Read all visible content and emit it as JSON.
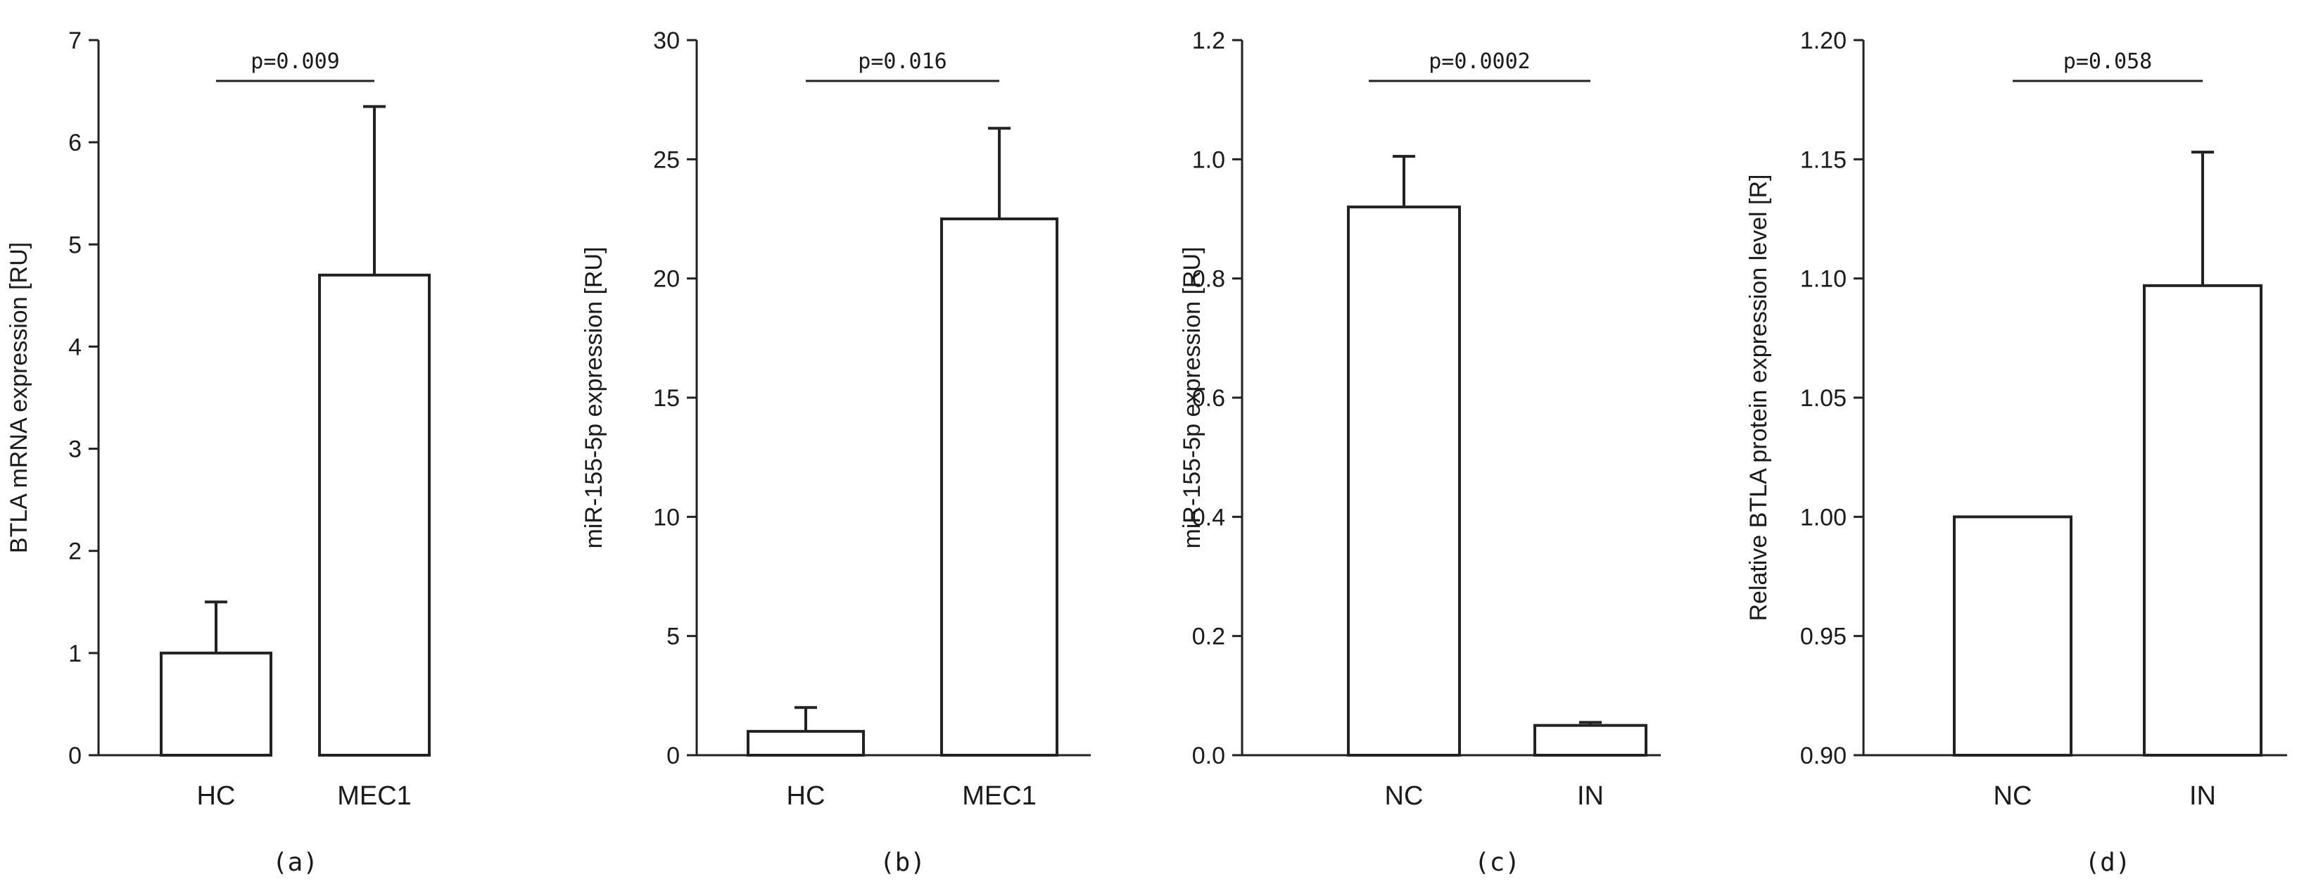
{
  "chart_data": [
    {
      "type": "bar",
      "panel_label": "(a)",
      "categories": [
        "HC",
        "MEC1"
      ],
      "values": [
        1.0,
        4.7
      ],
      "errors": [
        0.5,
        1.65
      ],
      "ylabel": "BTLA mRNA expression  [RU]",
      "ylim": [
        0,
        7
      ],
      "yticks": [
        "0",
        "1",
        "2",
        "3",
        "4",
        "5",
        "6",
        "7"
      ],
      "significance": "p=0.009"
    },
    {
      "type": "bar",
      "panel_label": "(b)",
      "categories": [
        "HC",
        "MEC1"
      ],
      "values": [
        1.0,
        22.5
      ],
      "errors": [
        1.0,
        3.8
      ],
      "ylabel": "miR-155-5p expression  [RU]",
      "ylim": [
        0,
        30
      ],
      "yticks": [
        "0",
        "5",
        "10",
        "15",
        "20",
        "25",
        "30"
      ],
      "significance": "p=0.016"
    },
    {
      "type": "bar",
      "panel_label": "(c)",
      "categories": [
        "NC",
        "IN"
      ],
      "values": [
        0.92,
        0.05
      ],
      "errors": [
        0.085,
        0.005
      ],
      "ylabel": "miR-155-5p expression  [RU]",
      "ylim": [
        0,
        1.2
      ],
      "yticks": [
        "0.0",
        "0.2",
        "0.4",
        "0.6",
        "0.8",
        "1.0",
        "1.2"
      ],
      "significance": "p=0.0002"
    },
    {
      "type": "bar",
      "panel_label": "(d)",
      "categories": [
        "NC",
        "IN"
      ],
      "values": [
        1.0,
        1.097
      ],
      "errors": [
        0.0,
        0.056
      ],
      "ylabel": "Relative BTLA  protein expression level [R]",
      "ylim": [
        0.9,
        1.2
      ],
      "yticks": [
        "0.90",
        "0.95",
        "1.00",
        "1.05",
        "1.10",
        "1.15",
        "1.20"
      ],
      "significance": "p=0.058"
    }
  ]
}
